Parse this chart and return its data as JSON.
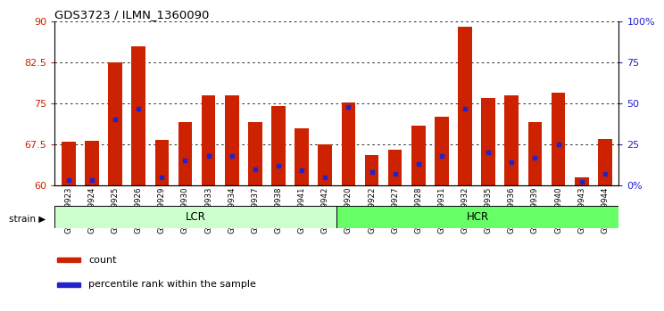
{
  "title": "GDS3723 / ILMN_1360090",
  "samples": [
    "GSM429923",
    "GSM429924",
    "GSM429925",
    "GSM429926",
    "GSM429929",
    "GSM429930",
    "GSM429933",
    "GSM429934",
    "GSM429937",
    "GSM429938",
    "GSM429941",
    "GSM429942",
    "GSM429920",
    "GSM429922",
    "GSM429927",
    "GSM429928",
    "GSM429931",
    "GSM429932",
    "GSM429935",
    "GSM429936",
    "GSM429939",
    "GSM429940",
    "GSM429943",
    "GSM429944"
  ],
  "count_values": [
    68.0,
    68.2,
    82.5,
    85.5,
    68.3,
    71.5,
    76.5,
    76.5,
    71.5,
    74.5,
    70.5,
    67.5,
    75.2,
    65.5,
    66.5,
    71.0,
    72.5,
    89.0,
    76.0,
    76.5,
    71.5,
    77.0,
    61.5,
    68.5
  ],
  "percentile_values": [
    3,
    3,
    40,
    47,
    5,
    15,
    18,
    18,
    10,
    12,
    9,
    5,
    48,
    8,
    7,
    13,
    18,
    47,
    20,
    14,
    17,
    25,
    2,
    7
  ],
  "lcr_count": 12,
  "hcr_count": 12,
  "ymin": 60,
  "ymax": 90,
  "yticks": [
    60,
    67.5,
    75,
    82.5,
    90
  ],
  "ytick_labels": [
    "60",
    "67.5",
    "75",
    "82.5",
    "90"
  ],
  "right_yticks": [
    0,
    25,
    50,
    75,
    100
  ],
  "right_ytick_labels": [
    "0%",
    "25",
    "50",
    "75",
    "100%"
  ],
  "bar_color": "#CC2200",
  "dot_color": "#2222CC",
  "lcr_color": "#CCFFCC",
  "hcr_color": "#66FF66",
  "background_color": "#FFFFFF",
  "legend_count_label": "count",
  "legend_pct_label": "percentile rank within the sample",
  "ylabel_left_color": "#CC2200",
  "ylabel_right_color": "#2222CC"
}
